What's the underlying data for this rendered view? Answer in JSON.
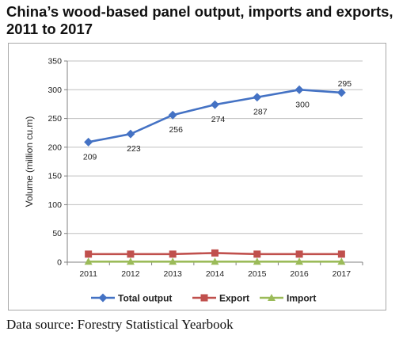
{
  "title": "China’s wood-based panel output, imports and exports, 2011 to 2017",
  "source": "Data source: Forestry Statistical Yearbook",
  "chart_data": {
    "type": "line",
    "title": "",
    "xlabel": "",
    "ylabel": "Volume (million cu.m)",
    "categories": [
      "2011",
      "2012",
      "2013",
      "2014",
      "2015",
      "2016",
      "2017"
    ],
    "ylim": [
      0,
      350
    ],
    "yticks": [
      0,
      50,
      100,
      150,
      200,
      250,
      300,
      350
    ],
    "grid": true,
    "legend_position": "bottom",
    "series": [
      {
        "name": "Total output",
        "color": "#4472c4",
        "marker": "diamond",
        "values": [
          209,
          223,
          256,
          274,
          287,
          300,
          295
        ],
        "labels": [
          "209",
          "223",
          "256",
          "274",
          "287",
          "300",
          "295"
        ]
      },
      {
        "name": "Export",
        "color": "#c0504d",
        "marker": "square",
        "values": [
          14,
          14,
          14,
          16,
          14,
          14,
          14
        ]
      },
      {
        "name": "Import",
        "color": "#9bbb59",
        "marker": "triangle",
        "values": [
          1,
          1,
          1,
          1,
          1,
          1,
          1
        ]
      }
    ]
  }
}
